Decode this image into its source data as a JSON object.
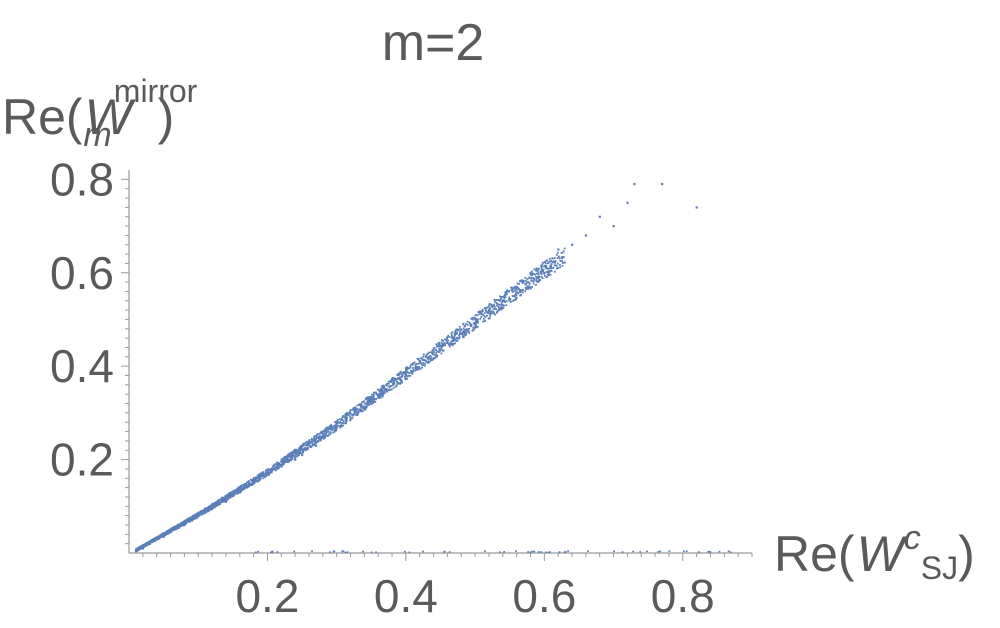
{
  "chart_data": {
    "type": "scatter",
    "title": "m=2",
    "ylabel": {
      "prefix": "Re(",
      "var": "W",
      "sub": "m",
      "sup": "mirror",
      "suffix": ")"
    },
    "xlabel": {
      "prefix": "Re(",
      "var": "W",
      "sup": "c",
      "sub": "SJ",
      "suffix": ")"
    },
    "xlim": [
      0,
      0.9
    ],
    "ylim": [
      0,
      0.82
    ],
    "x_ticks": [
      "0.2",
      "0.4",
      "0.6",
      "0.8"
    ],
    "y_ticks": [
      "0.2",
      "0.4",
      "0.6",
      "0.8"
    ],
    "x_tick_values": [
      0.2,
      0.4,
      0.6,
      0.8
    ],
    "y_tick_values": [
      0.2,
      0.4,
      0.6,
      0.8
    ],
    "point_color": "#5b7fb8",
    "trend": {
      "description_points": [
        [
          0.01,
          0.005
        ],
        [
          0.1,
          0.08
        ],
        [
          0.2,
          0.17
        ],
        [
          0.3,
          0.27
        ],
        [
          0.4,
          0.38
        ],
        [
          0.5,
          0.49
        ],
        [
          0.6,
          0.6
        ],
        [
          0.7,
          0.7
        ]
      ]
    },
    "series": [
      {
        "values": [
          [
            0.01,
            0.005
          ],
          [
            0.02,
            0.01
          ],
          [
            0.03,
            0.02
          ],
          [
            0.04,
            0.03
          ],
          [
            0.05,
            0.035
          ],
          [
            0.06,
            0.045
          ],
          [
            0.07,
            0.055
          ],
          [
            0.08,
            0.06
          ],
          [
            0.09,
            0.07
          ],
          [
            0.1,
            0.08
          ],
          [
            0.12,
            0.095
          ],
          [
            0.14,
            0.11
          ],
          [
            0.15,
            0.125
          ],
          [
            0.16,
            0.13
          ],
          [
            0.18,
            0.15
          ],
          [
            0.2,
            0.17
          ],
          [
            0.22,
            0.185
          ],
          [
            0.24,
            0.2
          ],
          [
            0.25,
            0.21
          ],
          [
            0.27,
            0.23
          ],
          [
            0.28,
            0.25
          ],
          [
            0.3,
            0.27
          ],
          [
            0.32,
            0.29
          ],
          [
            0.34,
            0.31
          ],
          [
            0.35,
            0.33
          ],
          [
            0.37,
            0.35
          ],
          [
            0.38,
            0.37
          ],
          [
            0.4,
            0.38
          ],
          [
            0.42,
            0.41
          ],
          [
            0.44,
            0.43
          ],
          [
            0.46,
            0.45
          ],
          [
            0.48,
            0.47
          ],
          [
            0.5,
            0.49
          ],
          [
            0.52,
            0.52
          ],
          [
            0.54,
            0.53
          ],
          [
            0.56,
            0.57
          ],
          [
            0.58,
            0.6
          ],
          [
            0.6,
            0.6
          ],
          [
            0.62,
            0.65
          ],
          [
            0.64,
            0.66
          ],
          [
            0.66,
            0.68
          ],
          [
            0.68,
            0.72
          ],
          [
            0.7,
            0.7
          ],
          [
            0.72,
            0.75
          ],
          [
            0.73,
            0.79
          ],
          [
            0.77,
            0.79
          ],
          [
            0.82,
            0.74
          ]
        ]
      }
    ]
  }
}
